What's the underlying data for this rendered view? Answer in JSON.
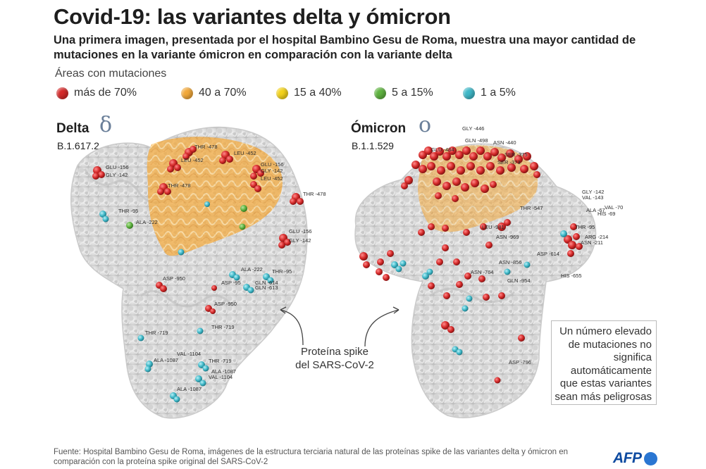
{
  "title": "Covid-19: las variantes delta y ómicron",
  "subtitle": "Una primera imagen, presentada por el hospital Bambino Gesu de Roma, muestra una mayor cantidad de mutaciones en la variante ómicron en comparación con la variante delta",
  "legend": {
    "title": "Áreas con mutaciones",
    "items": [
      {
        "label": "más de 70%",
        "color": "#d42a2a"
      },
      {
        "label": "40 a 70%",
        "color": "#f2a93b"
      },
      {
        "label": "15 a 40%",
        "color": "#f3d21b"
      },
      {
        "label": "5 a 15%",
        "color": "#5fb340"
      },
      {
        "label": "1 a 5%",
        "color": "#3fb8c8"
      }
    ]
  },
  "delta": {
    "name": "Delta",
    "symbol": "δ",
    "code": "B.1.617.2",
    "labels": [
      "THR -478",
      "LEU -452",
      "GLU -156",
      "GLY -142",
      "LEU -452",
      "THR -478",
      "GLU -156",
      "GLY -142",
      "LEU -452",
      "THR -478",
      "THR -95",
      "ALA -222",
      "GLU -156",
      "GLY -142",
      "ALA -222",
      "THR -95",
      "ASP -950",
      "ASP -95",
      "GLN -614",
      "GLN -613",
      "ASP -950",
      "THR -719",
      "THR -719",
      "VAL -1104",
      "ALA -1087",
      "THR -719",
      "ALA -1087",
      "VAL -1104",
      "ALA -1087"
    ]
  },
  "omicron": {
    "name": "Ómicron",
    "symbol": "o",
    "code": "B.1.1.529",
    "labels": [
      "GLY -446",
      "GLN -498",
      "ASN -440",
      "GLU -484",
      "SER -375",
      "SER -373",
      "THR -547",
      "LEU -981",
      "ASN -969",
      "ASN -856",
      "ASN -764",
      "GLN -954",
      "ASP -614",
      "HIS -655",
      "ASP -796",
      "GLY -142",
      "VAL -143",
      "ALA -67",
      "HIS -69",
      "VAL -70",
      "THR -95",
      "ARG -214",
      "ASN -211"
    ]
  },
  "spike_label": {
    "line1": "Proteína spike",
    "line2": "del SARS-CoV-2"
  },
  "note": "Un número elevado de mutaciones no significa automáticamente que estas variantes sean más peligrosas",
  "source": "Fuente: Hospital Bambino Gesu de Roma, imágenes de la estructura terciaria natural de las proteínas spike de las variantes delta y ómicron en comparación con la proteína spike original del SARS-CoV-2",
  "logo": "AFP"
}
